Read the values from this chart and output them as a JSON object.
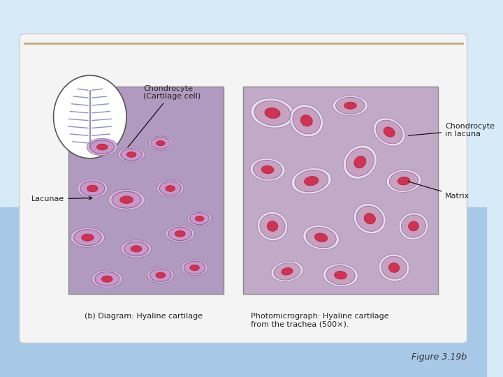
{
  "background_top": "#d6eaf8",
  "background_bottom": "#a8c8e8",
  "panel_bg": "#f5f5f5",
  "border_color": "#c8a882",
  "figure_label": "Figure 3.19b",
  "label_chondrocyte_cell": "Chondrocyte\n(Cartilage cell)",
  "label_chondrocyte_lacuna": "Chondrocyte\nin lacuna",
  "label_lacunae": "Lacunae",
  "label_matrix": "Matrix",
  "caption_left": "(b) Diagram: Hyaline cartilage",
  "caption_right": "Photomicrograph: Hyaline cartilage\nfrom the trachea (500×).",
  "diagram_bg": "#b09abf",
  "photo_bg": "#c0aac8",
  "font_color": "#222222",
  "figure_label_color": "#333333"
}
